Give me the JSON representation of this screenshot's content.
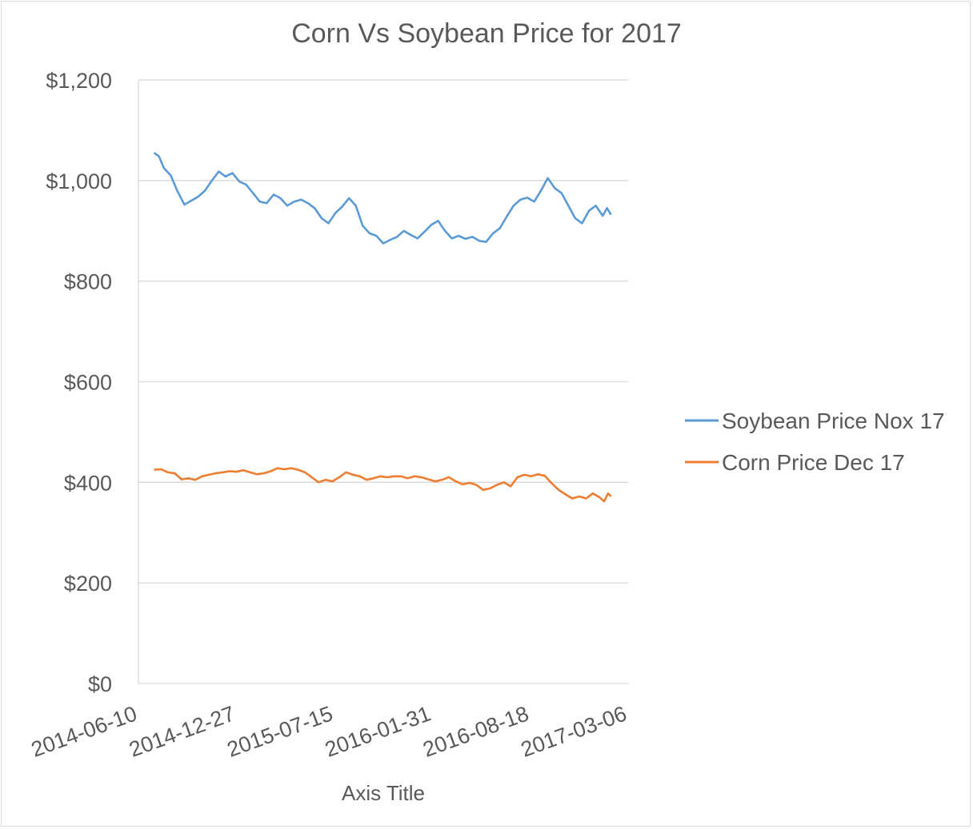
{
  "chart_data": {
    "type": "line",
    "title": "Corn Vs Soybean Price for 2017",
    "xlabel": "Axis Title",
    "ylabel": "",
    "x_axis_type": "date",
    "xlim": [
      "2014-06-10",
      "2017-03-06"
    ],
    "ylim": [
      0,
      1200
    ],
    "y_ticks": [
      0,
      200,
      400,
      600,
      800,
      1000,
      1200
    ],
    "y_tick_labels": [
      "$0",
      "$200",
      "$400",
      "$600",
      "$800",
      "$1,000",
      "$1,200"
    ],
    "x_ticks": [
      "2014-06-10",
      "2014-12-27",
      "2015-07-15",
      "2016-01-31",
      "2016-08-18",
      "2017-03-06"
    ],
    "grid": "horizontal",
    "legend_position": "right",
    "series": [
      {
        "name": "Soybean Price Nox 17",
        "color": "#5b9bd5",
        "points": [
          [
            "2014-07-12",
            1055
          ],
          [
            "2014-07-22",
            1048
          ],
          [
            "2014-08-01",
            1025
          ],
          [
            "2014-08-15",
            1010
          ],
          [
            "2014-08-29",
            978
          ],
          [
            "2014-09-12",
            952
          ],
          [
            "2014-09-26",
            960
          ],
          [
            "2014-10-10",
            968
          ],
          [
            "2014-10-24",
            980
          ],
          [
            "2014-11-07",
            1000
          ],
          [
            "2014-11-21",
            1018
          ],
          [
            "2014-12-05",
            1008
          ],
          [
            "2014-12-19",
            1015
          ],
          [
            "2015-01-02",
            998
          ],
          [
            "2015-01-16",
            992
          ],
          [
            "2015-01-30",
            975
          ],
          [
            "2015-02-13",
            958
          ],
          [
            "2015-02-27",
            955
          ],
          [
            "2015-03-13",
            972
          ],
          [
            "2015-03-27",
            965
          ],
          [
            "2015-04-10",
            950
          ],
          [
            "2015-04-24",
            958
          ],
          [
            "2015-05-08",
            962
          ],
          [
            "2015-05-22",
            955
          ],
          [
            "2015-06-05",
            945
          ],
          [
            "2015-06-19",
            925
          ],
          [
            "2015-07-03",
            915
          ],
          [
            "2015-07-17",
            935
          ],
          [
            "2015-07-31",
            948
          ],
          [
            "2015-08-14",
            965
          ],
          [
            "2015-08-28",
            950
          ],
          [
            "2015-09-11",
            910
          ],
          [
            "2015-09-25",
            895
          ],
          [
            "2015-10-09",
            890
          ],
          [
            "2015-10-23",
            875
          ],
          [
            "2015-11-06",
            882
          ],
          [
            "2015-11-20",
            888
          ],
          [
            "2015-12-04",
            900
          ],
          [
            "2015-12-18",
            892
          ],
          [
            "2016-01-01",
            885
          ],
          [
            "2016-01-15",
            898
          ],
          [
            "2016-01-29",
            912
          ],
          [
            "2016-02-12",
            920
          ],
          [
            "2016-02-26",
            900
          ],
          [
            "2016-03-11",
            885
          ],
          [
            "2016-03-25",
            890
          ],
          [
            "2016-04-08",
            884
          ],
          [
            "2016-04-22",
            888
          ],
          [
            "2016-05-06",
            880
          ],
          [
            "2016-05-20",
            878
          ],
          [
            "2016-06-03",
            895
          ],
          [
            "2016-06-17",
            905
          ],
          [
            "2016-07-01",
            928
          ],
          [
            "2016-07-15",
            950
          ],
          [
            "2016-07-29",
            962
          ],
          [
            "2016-08-12",
            966
          ],
          [
            "2016-08-26",
            958
          ],
          [
            "2016-09-09",
            980
          ],
          [
            "2016-09-23",
            1005
          ],
          [
            "2016-10-07",
            985
          ],
          [
            "2016-10-21",
            975
          ],
          [
            "2016-11-04",
            950
          ],
          [
            "2016-11-18",
            925
          ],
          [
            "2016-12-02",
            915
          ],
          [
            "2016-12-16",
            940
          ],
          [
            "2016-12-30",
            950
          ],
          [
            "2017-01-13",
            930
          ],
          [
            "2017-01-22",
            945
          ],
          [
            "2017-01-30",
            932
          ]
        ]
      },
      {
        "name": "Corn Price Dec 17",
        "color": "#ed7d31",
        "points": [
          [
            "2014-07-12",
            425
          ],
          [
            "2014-07-26",
            426
          ],
          [
            "2014-08-09",
            420
          ],
          [
            "2014-08-23",
            418
          ],
          [
            "2014-09-06",
            406
          ],
          [
            "2014-09-20",
            408
          ],
          [
            "2014-10-04",
            405
          ],
          [
            "2014-10-18",
            412
          ],
          [
            "2014-11-01",
            415
          ],
          [
            "2014-11-15",
            418
          ],
          [
            "2014-11-29",
            420
          ],
          [
            "2014-12-13",
            422
          ],
          [
            "2014-12-27",
            421
          ],
          [
            "2015-01-10",
            424
          ],
          [
            "2015-01-24",
            420
          ],
          [
            "2015-02-07",
            416
          ],
          [
            "2015-02-21",
            418
          ],
          [
            "2015-03-07",
            422
          ],
          [
            "2015-03-21",
            428
          ],
          [
            "2015-04-04",
            426
          ],
          [
            "2015-04-18",
            428
          ],
          [
            "2015-05-02",
            425
          ],
          [
            "2015-05-16",
            420
          ],
          [
            "2015-05-30",
            410
          ],
          [
            "2015-06-13",
            400
          ],
          [
            "2015-06-27",
            405
          ],
          [
            "2015-07-11",
            402
          ],
          [
            "2015-07-25",
            410
          ],
          [
            "2015-08-08",
            420
          ],
          [
            "2015-08-22",
            415
          ],
          [
            "2015-09-05",
            412
          ],
          [
            "2015-09-19",
            405
          ],
          [
            "2015-10-03",
            408
          ],
          [
            "2015-10-17",
            412
          ],
          [
            "2015-10-31",
            410
          ],
          [
            "2015-11-14",
            412
          ],
          [
            "2015-11-28",
            412
          ],
          [
            "2015-12-12",
            408
          ],
          [
            "2015-12-26",
            412
          ],
          [
            "2016-01-09",
            410
          ],
          [
            "2016-01-23",
            406
          ],
          [
            "2016-02-06",
            402
          ],
          [
            "2016-02-20",
            405
          ],
          [
            "2016-03-05",
            410
          ],
          [
            "2016-03-19",
            402
          ],
          [
            "2016-04-02",
            396
          ],
          [
            "2016-04-16",
            399
          ],
          [
            "2016-04-30",
            395
          ],
          [
            "2016-05-14",
            385
          ],
          [
            "2016-05-28",
            388
          ],
          [
            "2016-06-11",
            395
          ],
          [
            "2016-06-25",
            400
          ],
          [
            "2016-07-09",
            392
          ],
          [
            "2016-07-23",
            410
          ],
          [
            "2016-08-06",
            415
          ],
          [
            "2016-08-20",
            412
          ],
          [
            "2016-09-03",
            416
          ],
          [
            "2016-09-17",
            413
          ],
          [
            "2016-10-01",
            398
          ],
          [
            "2016-10-15",
            385
          ],
          [
            "2016-10-29",
            376
          ],
          [
            "2016-11-12",
            368
          ],
          [
            "2016-11-26",
            372
          ],
          [
            "2016-12-10",
            368
          ],
          [
            "2016-12-24",
            378
          ],
          [
            "2017-01-07",
            370
          ],
          [
            "2017-01-16",
            362
          ],
          [
            "2017-01-24",
            378
          ],
          [
            "2017-01-30",
            372
          ]
        ]
      }
    ]
  }
}
